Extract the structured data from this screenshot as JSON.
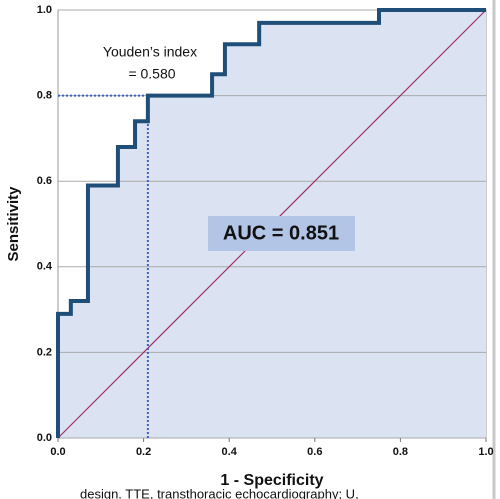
{
  "chart_data": {
    "type": "line",
    "x_label": "1 - Specificity",
    "y_label": "Sensitivity",
    "x": [
      0,
      0,
      0.03,
      0.03,
      0.07,
      0.07,
      0.14,
      0.14,
      0.18,
      0.18,
      0.21,
      0.21,
      0.36,
      0.36,
      0.39,
      0.39,
      0.47,
      0.47,
      0.75,
      0.75,
      1
    ],
    "values": [
      0,
      0.29,
      0.29,
      0.32,
      0.32,
      0.59,
      0.59,
      0.68,
      0.68,
      0.74,
      0.74,
      0.8,
      0.8,
      0.85,
      0.85,
      0.92,
      0.92,
      0.97,
      0.97,
      1,
      1
    ],
    "color": "#1f4e79",
    "fill_color": "#dbe3f2",
    "reference_line": {
      "x": [
        0,
        1
      ],
      "values": [
        0,
        1
      ],
      "color": "#a0306a"
    },
    "youden_point": {
      "x": 0.21,
      "y": 0.8,
      "color": "#3a62c4"
    },
    "annotations": [
      "Youden’s index",
      "= 0.580",
      "AUC = 0.851"
    ],
    "xlim": [
      0,
      1
    ],
    "ylim": [
      0,
      1
    ],
    "xticks": [
      {
        "value": 0,
        "label": "0.0"
      },
      0.2,
      0.4,
      0.6,
      0.8,
      {
        "value": 1,
        "label": "1.0"
      }
    ],
    "yticks": [
      {
        "value": 0,
        "label": "0.0"
      },
      0.2,
      0.4,
      0.6,
      0.8,
      {
        "value": 1,
        "label": "1.0"
      }
    ],
    "grid": true
  },
  "caption": "design. TTE, transthoracic echocardiography; U,"
}
